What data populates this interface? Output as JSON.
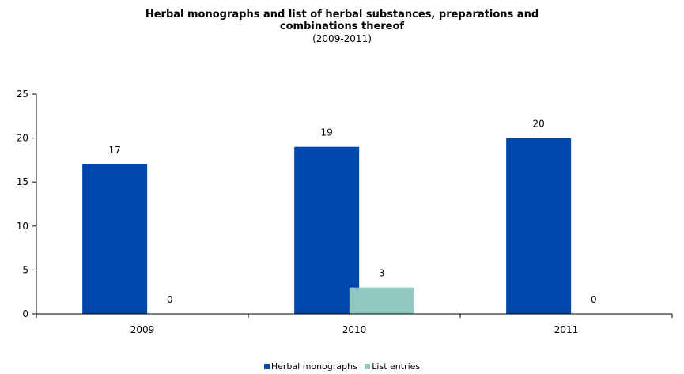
{
  "chart_data": {
    "type": "bar",
    "title_lines": [
      "Herbal monographs and list of herbal substances, preparations and",
      "combinations thereof"
    ],
    "subtitle": "(2009-2011)",
    "categories": [
      "2009",
      "2010",
      "2011"
    ],
    "series": [
      {
        "name": "Herbal monographs",
        "values": [
          17,
          19,
          20
        ],
        "color": "#0047AB"
      },
      {
        "name": "List entries",
        "values": [
          0,
          3,
          0
        ],
        "color": "#8FC9C0"
      }
    ],
    "yticks": [
      0,
      5,
      10,
      15,
      20,
      25
    ],
    "ylim": [
      0,
      25
    ],
    "grid": false,
    "data_labels": true,
    "legend_position": "bottom"
  }
}
